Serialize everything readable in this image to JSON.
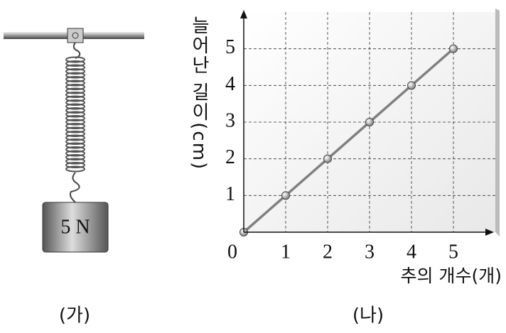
{
  "figure": {
    "left_caption": "(가)",
    "weight_label": "5 N",
    "right_caption": "(나)"
  },
  "chart_data": {
    "type": "line",
    "x_label": "추의 개수(개)",
    "y_label": "늘어난 길이(cm)",
    "x": [
      0,
      1,
      2,
      3,
      4,
      5
    ],
    "series": [
      {
        "color": "#808080",
        "values": [
          0,
          1,
          2,
          3,
          4,
          5
        ]
      }
    ],
    "xlim": [
      0,
      6
    ],
    "ylim": [
      0,
      6
    ],
    "xticks": [
      0,
      1,
      2,
      3,
      4,
      5
    ],
    "yticks": [
      1,
      2,
      3,
      4,
      5
    ],
    "grid": true
  }
}
